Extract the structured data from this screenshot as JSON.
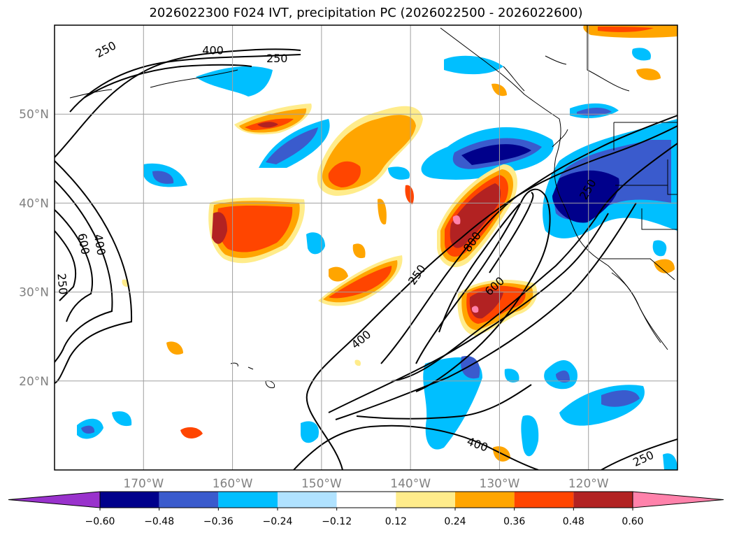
{
  "title": "2026022300 F024 IVT, precipitation PC (2026022500 - 2026022600)",
  "map": {
    "lon_min": -180,
    "lon_max": -110,
    "lat_min": 10,
    "lat_max": 60,
    "lon_ticks": [
      {
        "value": -170,
        "label": "170°W"
      },
      {
        "value": -160,
        "label": "160°W"
      },
      {
        "value": -150,
        "label": "150°W"
      },
      {
        "value": -140,
        "label": "140°W"
      },
      {
        "value": -130,
        "label": "130°W"
      },
      {
        "value": -120,
        "label": "120°W"
      }
    ],
    "lat_ticks": [
      {
        "value": 50,
        "label": "50°N"
      },
      {
        "value": 40,
        "label": "40°N"
      },
      {
        "value": 30,
        "label": "30°N"
      },
      {
        "value": 20,
        "label": "20°N"
      }
    ]
  },
  "colorbar": {
    "levels": [
      "−0.60",
      "−0.48",
      "−0.36",
      "−0.24",
      "−0.12",
      "0.12",
      "0.24",
      "0.36",
      "0.48",
      "0.60"
    ],
    "colors": [
      "#9932cc",
      "#00008b",
      "#3a5bcd",
      "#00bfff",
      "#b0e2ff",
      "#ffffff",
      "#ffec8b",
      "#ffa500",
      "#ff4500",
      "#b22222",
      "#ff82ab"
    ]
  },
  "contour_labels": [
    {
      "text": "250",
      "lon": -174.2,
      "lat": 57.2,
      "rot": -28
    },
    {
      "text": "400",
      "lon": -162.2,
      "lat": 57.1,
      "rot": 0
    },
    {
      "text": "250",
      "lon": -155.0,
      "lat": 56.2,
      "rot": 0
    },
    {
      "text": "600",
      "lon": -176.8,
      "lat": 35.4,
      "rot": 80
    },
    {
      "text": "400",
      "lon": -175.0,
      "lat": 35.3,
      "rot": 80
    },
    {
      "text": "250",
      "lon": -179.2,
      "lat": 30.9,
      "rot": 85
    },
    {
      "text": "250",
      "lon": -120.0,
      "lat": 41.5,
      "rot": -60
    },
    {
      "text": "800",
      "lon": -133.0,
      "lat": 35.6,
      "rot": -55
    },
    {
      "text": "250",
      "lon": -139.2,
      "lat": 31.9,
      "rot": -55
    },
    {
      "text": "600",
      "lon": -130.5,
      "lat": 30.6,
      "rot": -42
    },
    {
      "text": "400",
      "lon": -145.5,
      "lat": 24.6,
      "rot": -40
    },
    {
      "text": "400",
      "lon": -132.5,
      "lat": 12.8,
      "rot": 20
    },
    {
      "text": "250",
      "lon": -113.8,
      "lat": 11.2,
      "rot": -25
    }
  ]
}
